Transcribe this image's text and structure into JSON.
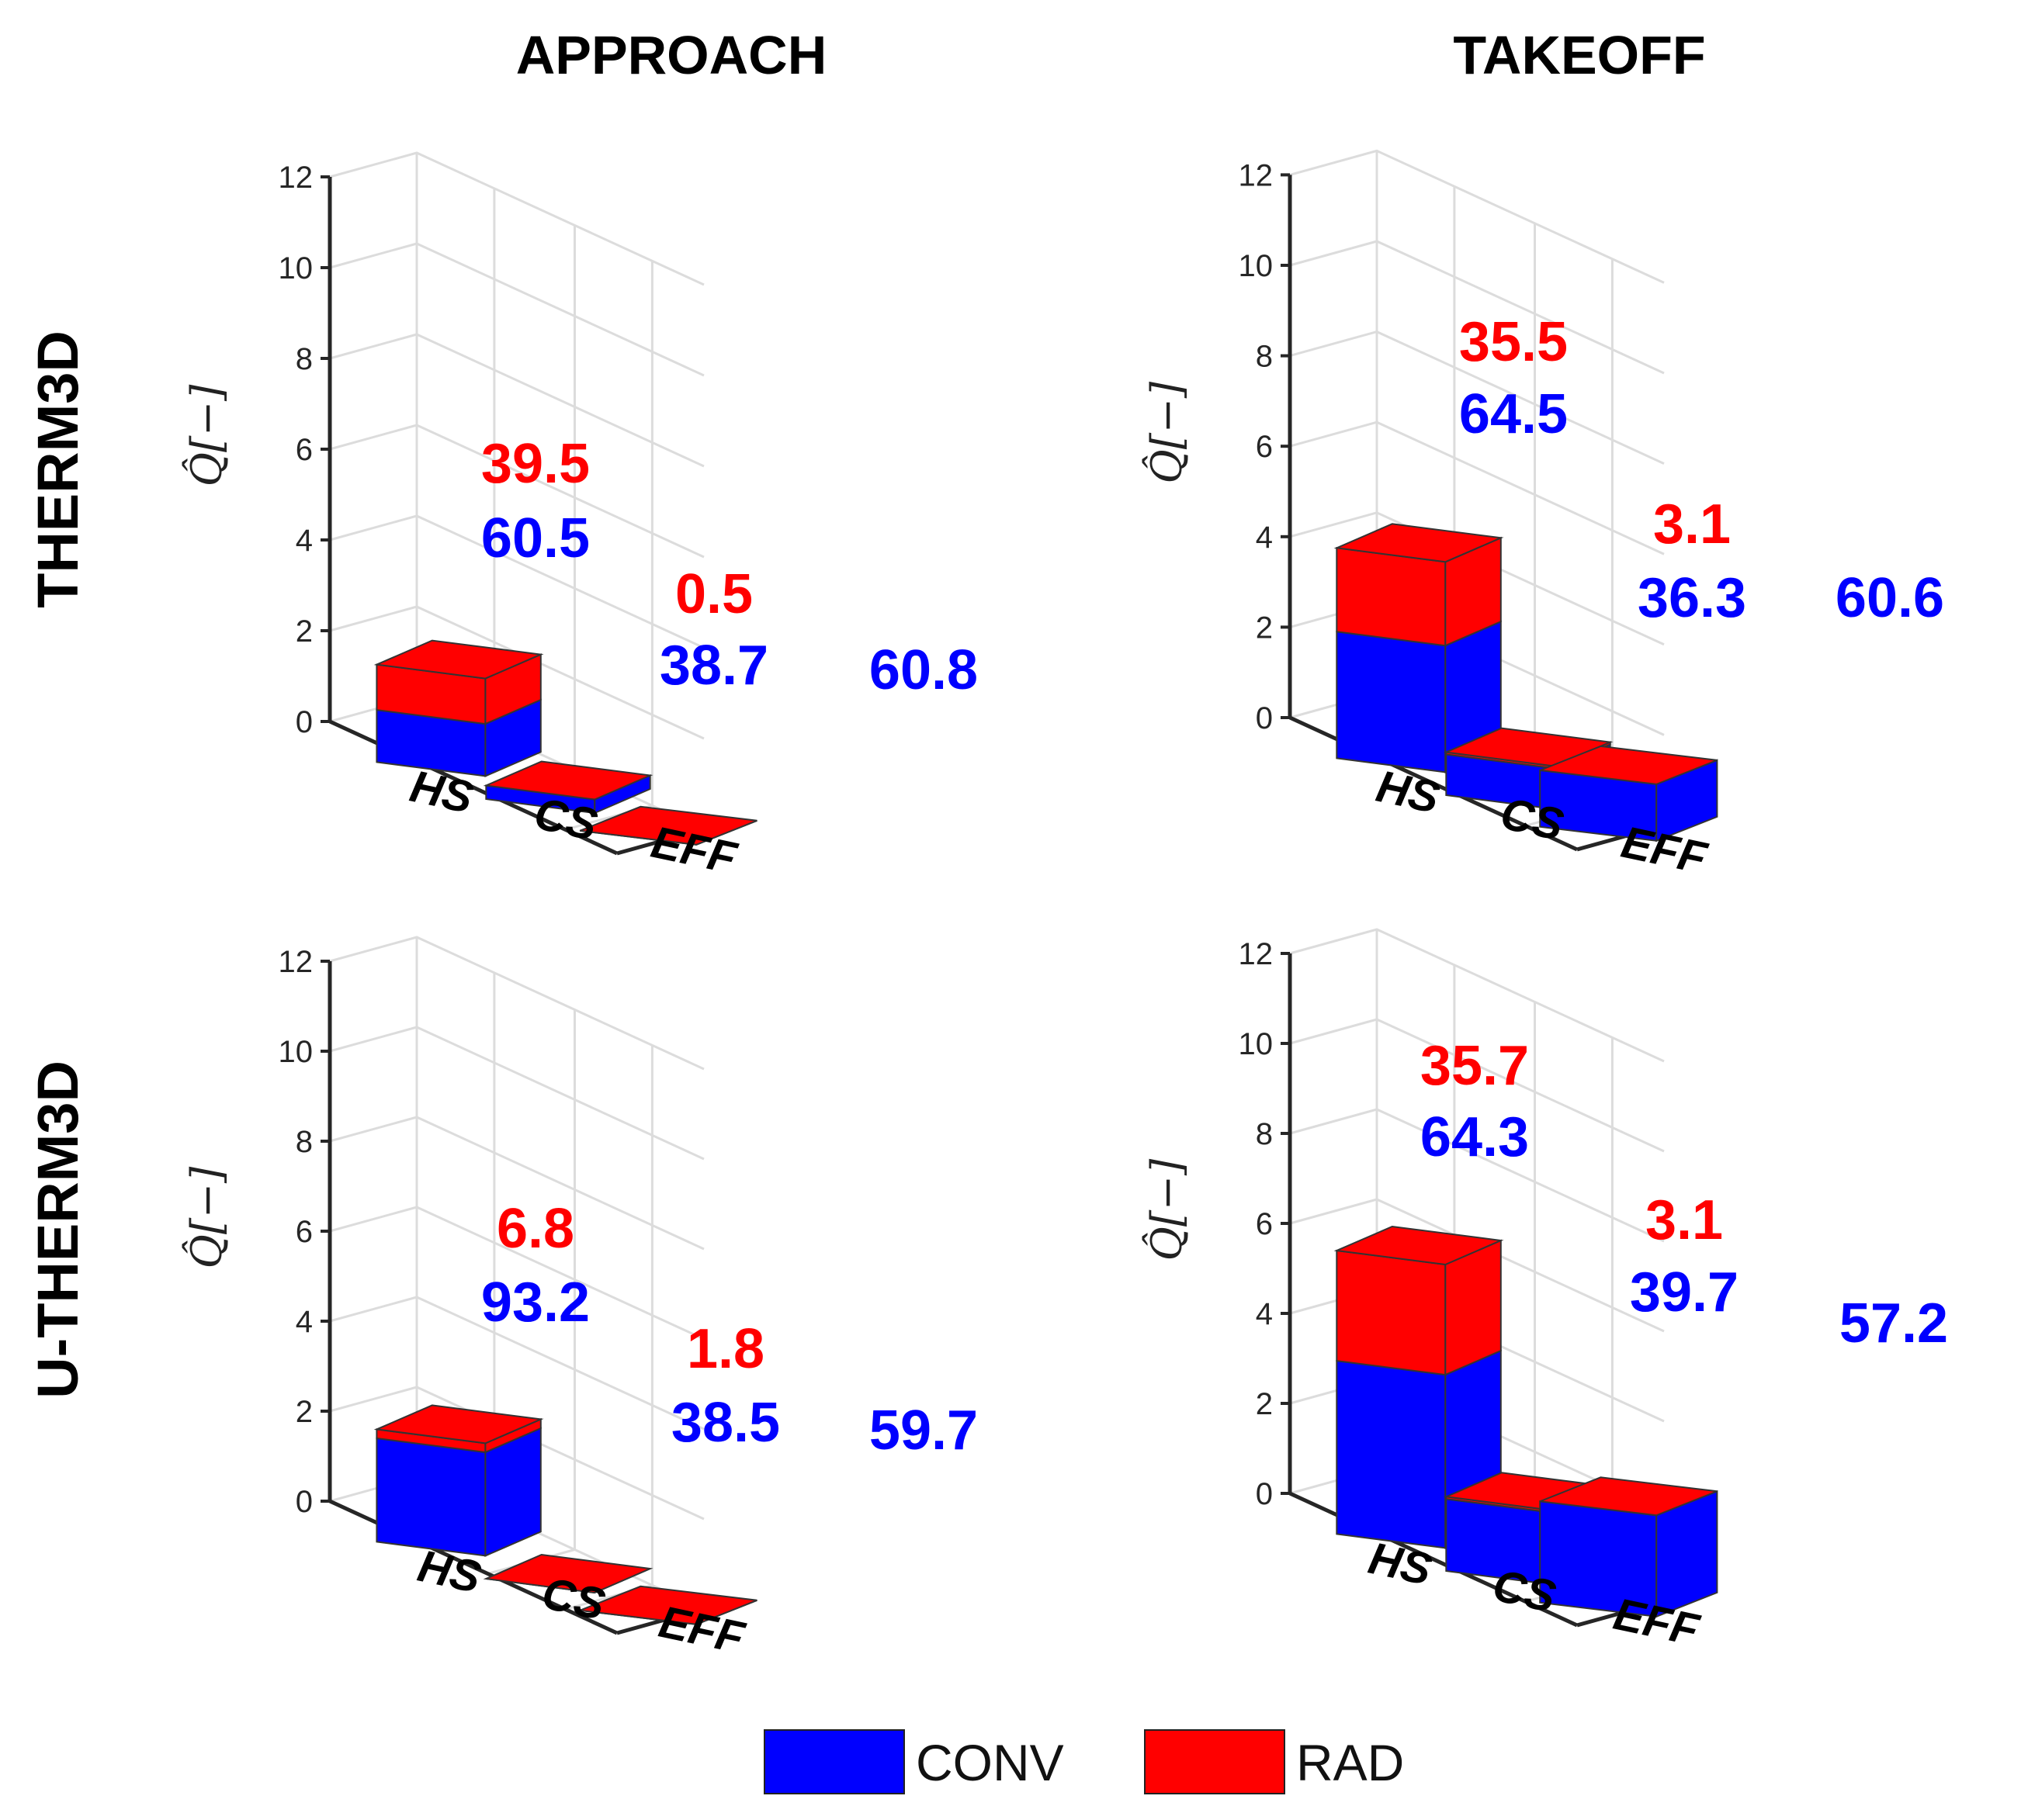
{
  "colors": {
    "conv": "#0000ff",
    "rad": "#ff0000",
    "grid": "#dcdcdc",
    "axis": "#262626"
  },
  "column_headers": [
    "APPROACH",
    "TAKEOFF"
  ],
  "row_headers": [
    "THERM3D",
    "U-THERM3D"
  ],
  "legend": [
    {
      "label": "CONV",
      "color": "#0000ff"
    },
    {
      "label": "RAD",
      "color": "#ff0000"
    }
  ],
  "chart_data": [
    {
      "type": "bar3d_stacked",
      "title": "APPROACH",
      "row": "THERM3D",
      "ylabel": "Q̂[−]",
      "ylim": [
        0,
        12
      ],
      "yticks": [
        "0",
        "2",
        "4",
        "6",
        "8",
        "10",
        "12"
      ],
      "categories": [
        "HS",
        "CS",
        "EFF"
      ],
      "series": [
        {
          "name": "CONV",
          "values": [
            1.15,
            0.3,
            0.0
          ]
        },
        {
          "name": "RAD",
          "values": [
            1.0,
            0.0,
            0.0
          ]
        }
      ],
      "labels": [
        {
          "category": "HS",
          "rad": "39.5",
          "conv": "60.5"
        },
        {
          "category": "CS",
          "rad": "0.5",
          "conv": "38.7"
        },
        {
          "category": "EFF",
          "rad": "",
          "conv": "60.8"
        }
      ]
    },
    {
      "type": "bar3d_stacked",
      "title": "TAKEOFF",
      "row": "THERM3D",
      "ylabel": "Q̂[−]",
      "ylim": [
        0,
        12
      ],
      "yticks": [
        "0",
        "2",
        "4",
        "6",
        "8",
        "10",
        "12"
      ],
      "categories": [
        "HS",
        "CS",
        "EFF"
      ],
      "series": [
        {
          "name": "CONV",
          "values": [
            2.8,
            0.9,
            1.25
          ]
        },
        {
          "name": "RAD",
          "values": [
            1.85,
            0.05,
            0.0
          ]
        }
      ],
      "labels": [
        {
          "category": "HS",
          "rad": "35.5",
          "conv": "64.5"
        },
        {
          "category": "CS",
          "rad": "3.1",
          "conv": "36.3"
        },
        {
          "category": "EFF",
          "rad": "",
          "conv": "60.6"
        }
      ]
    },
    {
      "type": "bar3d_stacked",
      "title": "APPROACH",
      "row": "U-THERM3D",
      "ylabel": "Q̂[−]",
      "ylim": [
        0,
        12
      ],
      "yticks": [
        "0",
        "2",
        "4",
        "6",
        "8",
        "10",
        "12"
      ],
      "categories": [
        "HS",
        "CS",
        "EFF"
      ],
      "series": [
        {
          "name": "CONV",
          "values": [
            2.3,
            0.0,
            0.0
          ]
        },
        {
          "name": "RAD",
          "values": [
            0.2,
            0.0,
            0.0
          ]
        }
      ],
      "labels": [
        {
          "category": "HS",
          "rad": "6.8",
          "conv": "93.2"
        },
        {
          "category": "CS",
          "rad": "1.8",
          "conv": "38.5"
        },
        {
          "category": "EFF",
          "rad": "",
          "conv": "59.7"
        }
      ]
    },
    {
      "type": "bar3d_stacked",
      "title": "TAKEOFF",
      "row": "U-THERM3D",
      "ylabel": "Q̂[−]",
      "ylim": [
        0,
        12
      ],
      "yticks": [
        "0",
        "2",
        "4",
        "6",
        "8",
        "10",
        "12"
      ],
      "categories": [
        "HS",
        "CS",
        "EFF"
      ],
      "series": [
        {
          "name": "CONV",
          "values": [
            3.85,
            1.6,
            2.25
          ]
        },
        {
          "name": "RAD",
          "values": [
            2.45,
            0.05,
            0.0
          ]
        }
      ],
      "labels": [
        {
          "category": "HS",
          "rad": "35.7",
          "conv": "64.3"
        },
        {
          "category": "CS",
          "rad": "3.1",
          "conv": "39.7"
        },
        {
          "category": "EFF",
          "rad": "",
          "conv": "57.2"
        }
      ]
    }
  ]
}
